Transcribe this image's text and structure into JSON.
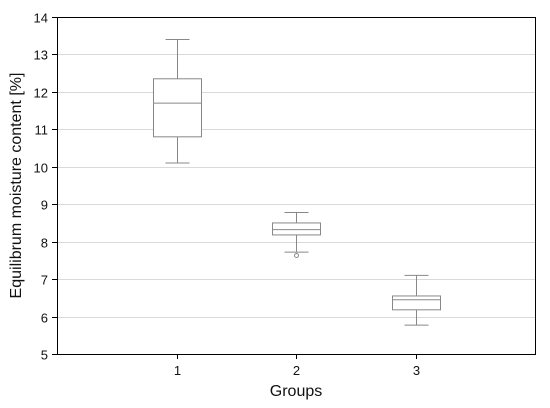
{
  "chart_data": {
    "type": "box",
    "title": "",
    "xlabel": "Groups",
    "ylabel": "Equilibrum moisture content [%]",
    "categories": [
      "1",
      "2",
      "3"
    ],
    "ylim": [
      5,
      14
    ],
    "yticks": [
      5,
      6,
      7,
      8,
      9,
      10,
      11,
      12,
      13,
      14
    ],
    "grid": true,
    "boxes": [
      {
        "category": "1",
        "min": 10.1,
        "q1": 10.8,
        "median": 11.7,
        "q3": 12.35,
        "max": 13.4,
        "outliers": []
      },
      {
        "category": "2",
        "min": 7.72,
        "q1": 8.18,
        "median": 8.32,
        "q3": 8.5,
        "max": 8.78,
        "outliers": [
          7.63
        ]
      },
      {
        "category": "3",
        "min": 5.77,
        "q1": 6.18,
        "median": 6.45,
        "q3": 6.55,
        "max": 7.1,
        "outliers": []
      }
    ],
    "colors": {
      "box": "#888888",
      "grid": "#d9d9d9",
      "axis": "#000000"
    }
  }
}
